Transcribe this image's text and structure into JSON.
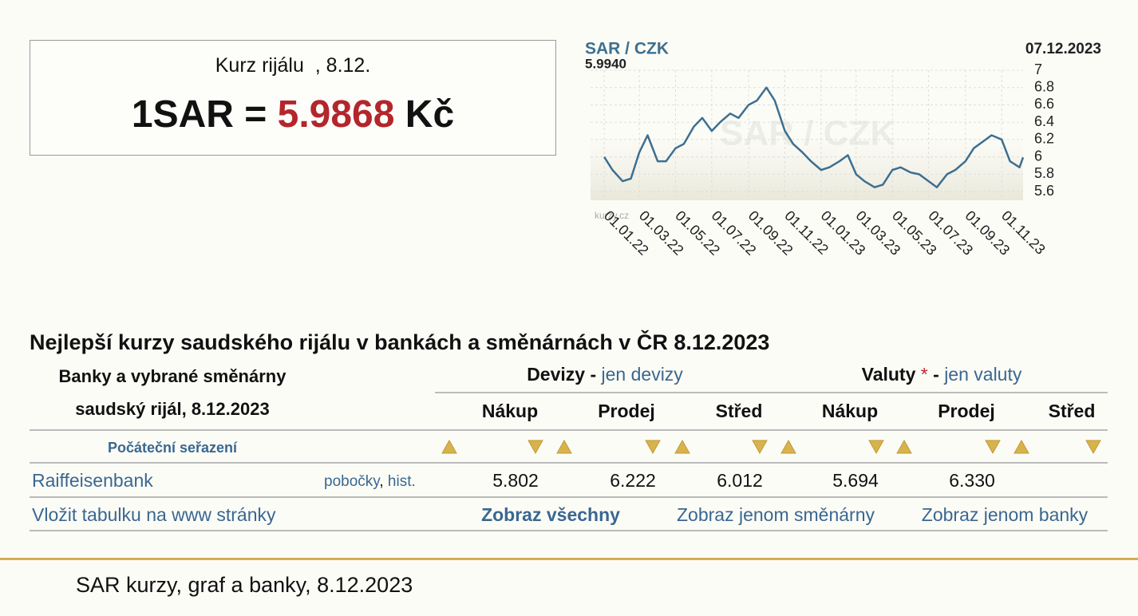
{
  "rate_box": {
    "heading": "Kurz rijálu  , 8.12.",
    "lhs": "1SAR =",
    "rate": "5.9868",
    "unit": "Kč"
  },
  "chart_data": {
    "type": "line",
    "title": "SAR / CZK",
    "latest_value": "5.9940",
    "date": "07.12.2023",
    "watermark": "SAR / CZK",
    "logo": "kurzy.cz",
    "color": "#3d6f91",
    "grid": true,
    "x": [
      "01.01.22",
      "15.01.22",
      "01.02.22",
      "15.02.22",
      "01.03.22",
      "15.03.22",
      "01.04.22",
      "15.04.22",
      "01.05.22",
      "15.05.22",
      "01.06.22",
      "15.06.22",
      "01.07.22",
      "15.07.22",
      "01.08.22",
      "15.08.22",
      "01.09.22",
      "15.09.22",
      "01.10.22",
      "15.10.22",
      "01.11.22",
      "15.11.22",
      "01.12.22",
      "15.12.22",
      "01.01.23",
      "15.01.23",
      "01.02.23",
      "15.02.23",
      "01.03.23",
      "15.03.23",
      "01.04.23",
      "15.04.23",
      "01.05.23",
      "15.05.23",
      "01.06.23",
      "15.06.23",
      "01.07.23",
      "15.07.23",
      "01.08.23",
      "15.08.23",
      "01.09.23",
      "15.09.23",
      "01.10.23",
      "15.10.23",
      "01.11.23",
      "15.11.23",
      "01.12.23",
      "07.12.23"
    ],
    "values": [
      6.0,
      5.85,
      5.72,
      5.75,
      6.05,
      6.25,
      5.95,
      5.95,
      6.1,
      6.15,
      6.35,
      6.45,
      6.3,
      6.4,
      6.5,
      6.45,
      6.6,
      6.65,
      6.8,
      6.65,
      6.3,
      6.15,
      6.05,
      5.95,
      5.85,
      5.88,
      5.95,
      6.02,
      5.8,
      5.72,
      5.65,
      5.68,
      5.85,
      5.88,
      5.82,
      5.8,
      5.72,
      5.65,
      5.8,
      5.85,
      5.95,
      6.1,
      6.18,
      6.25,
      6.2,
      5.95,
      5.88,
      5.994
    ],
    "xlim": [
      "09.12.21",
      "07.12.23"
    ],
    "xticks": [
      "01.01.22",
      "01.03.22",
      "01.05.22",
      "01.07.22",
      "01.09.22",
      "01.11.22",
      "01.01.23",
      "01.03.23",
      "01.05.23",
      "01.07.23",
      "01.09.23",
      "01.11.23"
    ],
    "ylim": [
      5.5,
      7
    ],
    "yticks": [
      5.6,
      5.8,
      6,
      6.2,
      6.4,
      6.6,
      6.8,
      7
    ]
  },
  "table": {
    "title": "Nejlepší kurzy saudského rijálu v bankách a směnárnách v ČR 8.12.2023",
    "bank_header": [
      "Banky a vybrané směnárny",
      "saudský rijál, 8.12.2023"
    ],
    "devizy": {
      "label": "Devizy",
      "sep": "-",
      "link": "jen devizy"
    },
    "valuty": {
      "label": "Valuty",
      "star": "*",
      "sep": "-",
      "link": "jen valuty"
    },
    "columns": [
      "Nákup",
      "Prodej",
      "Střed",
      "Nákup",
      "Prodej",
      "Střed"
    ],
    "sort_reset": "Počáteční seřazení",
    "rows": [
      {
        "name": "Raiffeisenbank",
        "branches": "pobočky",
        "comma": ",",
        "hist": "hist.",
        "values": [
          "5.802",
          "6.222",
          "6.012",
          "5.694",
          "6.330",
          null
        ]
      }
    ],
    "footer_links": [
      "Vložit tabulku na www stránky",
      "Zobraz všechny",
      "Zobraz jenom směnárny",
      "Zobraz jenom banky"
    ]
  },
  "footer": {
    "text": "SAR kurzy, graf a banky, 8.12.2023"
  }
}
